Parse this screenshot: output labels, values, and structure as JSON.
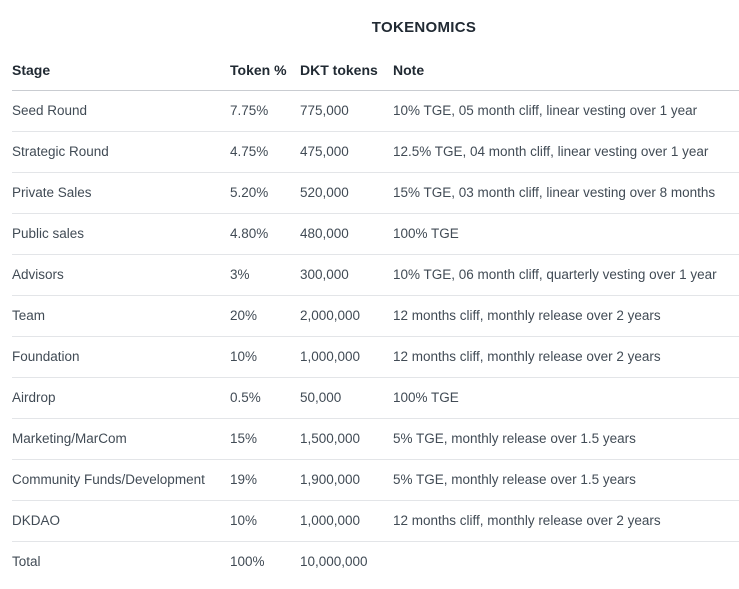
{
  "title": "TOKENOMICS",
  "colors": {
    "background": "#ffffff",
    "heading_text": "#212a33",
    "body_text": "#414b55",
    "header_border": "#c9ccd1",
    "row_border": "#e3e5e8"
  },
  "table": {
    "columns": [
      "Stage",
      "Token %",
      "DKT tokens",
      "Note"
    ],
    "rows": [
      {
        "stage": "Seed Round",
        "token_pct": "7.75%",
        "dkt_tokens": "775,000",
        "note": "10% TGE, 05 month cliff, linear vesting over 1 year"
      },
      {
        "stage": "Strategic Round",
        "token_pct": "4.75%",
        "dkt_tokens": "475,000",
        "note": "12.5% TGE, 04 month cliff, linear vesting over 1 year"
      },
      {
        "stage": "Private Sales",
        "token_pct": "5.20%",
        "dkt_tokens": "520,000",
        "note": "15% TGE, 03 month cliff, linear vesting over 8 months"
      },
      {
        "stage": "Public sales",
        "token_pct": "4.80%",
        "dkt_tokens": "480,000",
        "note": "100% TGE"
      },
      {
        "stage": "Advisors",
        "token_pct": "3%",
        "dkt_tokens": "300,000",
        "note": "10% TGE, 06 month cliff, quarterly vesting over 1 year"
      },
      {
        "stage": "Team",
        "token_pct": "20%",
        "dkt_tokens": "2,000,000",
        "note": "12 months cliff, monthly release over 2 years"
      },
      {
        "stage": "Foundation",
        "token_pct": "10%",
        "dkt_tokens": "1,000,000",
        "note": "12 months cliff, monthly release over 2 years"
      },
      {
        "stage": "Airdrop",
        "token_pct": "0.5%",
        "dkt_tokens": "50,000",
        "note": "100% TGE"
      },
      {
        "stage": "Marketing/MarCom",
        "token_pct": "15%",
        "dkt_tokens": "1,500,000",
        "note": "5% TGE, monthly release over 1.5 years"
      },
      {
        "stage": "Community Funds/Development",
        "token_pct": "19%",
        "dkt_tokens": "1,900,000",
        "note": "5% TGE, monthly release over 1.5 years"
      },
      {
        "stage": "DKDAO",
        "token_pct": "10%",
        "dkt_tokens": "1,000,000",
        "note": "12 months cliff, monthly release over 2 years"
      },
      {
        "stage": "Total",
        "token_pct": "100%",
        "dkt_tokens": "10,000,000",
        "note": ""
      }
    ]
  }
}
